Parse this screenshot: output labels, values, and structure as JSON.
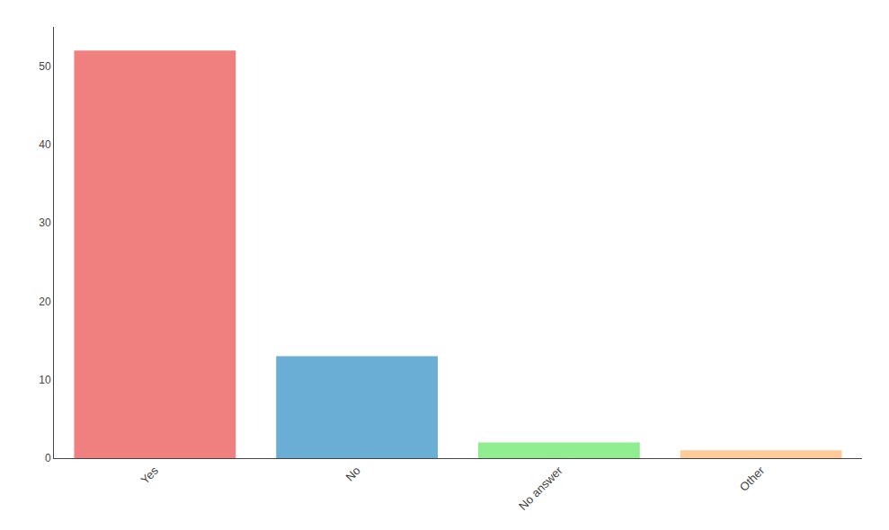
{
  "chart_data": {
    "type": "bar",
    "categories": [
      "Yes",
      "No",
      "No answer",
      "Other"
    ],
    "values": [
      52,
      13,
      2,
      1
    ],
    "colors": [
      "#f08080",
      "#6aaed6",
      "#90ee90",
      "#ffcc99"
    ],
    "ylim": [
      0,
      55
    ],
    "yticks": [
      0,
      10,
      20,
      30,
      40,
      50
    ],
    "grid": false
  }
}
